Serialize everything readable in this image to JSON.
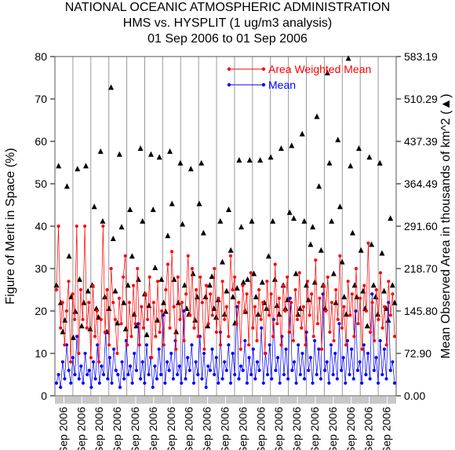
{
  "chart_data": {
    "type": "line",
    "title": "NATIONAL OCEANIC ATMOSPHERIC ADMINISTRATION",
    "subtitle_1": "HMS vs. HYSPLIT (1 ug/m3 analysis)",
    "subtitle_2": "01 Sep 2006 to 01 Sep 2006",
    "ylabel": "Figure of Merit in Space (%)",
    "y2label": "Mean Observed Area in thousands of km^2 (▲)",
    "ylim": [
      0,
      80
    ],
    "y_ticks": [
      "0",
      "10",
      "20",
      "30",
      "40",
      "50",
      "60",
      "70",
      "80"
    ],
    "y2lim": [
      0,
      583.19
    ],
    "y2_ticks": [
      "0.00",
      "72.90",
      "145.80",
      "218.70",
      "291.60",
      "364.49",
      "437.39",
      "510.29",
      "583.19"
    ],
    "x_tick_label": "Sep 2006",
    "x_tick_count": 19,
    "legend_position": "top-right",
    "colors": {
      "awm": "#ff0000",
      "mean": "#0000ff",
      "area": "#000000"
    },
    "series": [
      {
        "name": "Area Weighted Mean",
        "color": "#ff0000",
        "values": [
          25,
          40,
          16,
          22,
          12,
          20,
          27,
          8,
          24,
          18,
          40,
          10,
          25,
          18,
          40,
          16,
          22,
          9,
          26,
          14,
          20,
          8,
          18,
          40,
          15,
          25,
          12,
          30,
          22,
          18,
          10,
          23,
          17,
          28,
          33,
          12,
          22,
          14,
          26,
          17,
          30,
          12,
          21,
          16,
          24,
          18,
          28,
          9,
          22,
          14,
          27,
          15,
          20,
          12,
          25,
          31,
          16,
          34,
          21,
          11,
          28,
          18,
          22,
          13,
          24,
          33,
          19,
          30,
          16,
          25,
          14,
          28,
          22,
          11,
          26,
          17,
          24,
          19,
          30,
          15,
          23,
          12,
          27,
          18,
          21,
          14,
          33,
          25,
          28,
          17,
          22,
          11,
          26,
          20,
          24,
          12,
          29,
          16,
          21,
          13,
          25,
          18,
          22,
          10,
          27,
          19,
          24,
          14,
          31,
          17,
          23,
          12,
          26,
          20,
          28,
          15,
          22,
          13,
          25,
          18,
          29,
          16,
          21,
          12,
          27,
          19,
          24,
          14,
          32,
          17,
          23,
          11,
          26,
          20,
          28,
          15,
          22,
          13,
          25,
          18,
          33,
          16,
          21,
          12,
          27,
          19,
          24,
          14,
          30,
          17,
          23,
          11,
          26,
          20,
          36,
          15,
          22,
          13,
          25,
          18,
          29,
          16,
          21,
          12,
          27,
          19,
          24,
          14
        ]
      },
      {
        "name": "Mean",
        "color": "#0000ff",
        "values": [
          3,
          5,
          2,
          8,
          4,
          12,
          6,
          3,
          9,
          5,
          14,
          4,
          7,
          3,
          10,
          5,
          6,
          2,
          8,
          4,
          12,
          3,
          7,
          5,
          15,
          4,
          9,
          3,
          11,
          6,
          5,
          2,
          8,
          4,
          13,
          5,
          7,
          3,
          10,
          6,
          17,
          4,
          8,
          3,
          12,
          5,
          9,
          2,
          7,
          4,
          11,
          5,
          19,
          3,
          8,
          6,
          10,
          4,
          13,
          5,
          7,
          3,
          20,
          4,
          9,
          6,
          12,
          3,
          8,
          5,
          14,
          4,
          10,
          2,
          7,
          6,
          11,
          5,
          9,
          3,
          15,
          4,
          8,
          6,
          12,
          3,
          10,
          5,
          21,
          4,
          7,
          6,
          13,
          3,
          9,
          5,
          11,
          4,
          8,
          6,
          16,
          3,
          10,
          5,
          12,
          4,
          18,
          6,
          9,
          3,
          14,
          5,
          11,
          4,
          23,
          6,
          8,
          3,
          12,
          5,
          10,
          4,
          15,
          6,
          9,
          3,
          13,
          5,
          11,
          4,
          24,
          6,
          8,
          3,
          12,
          5,
          10,
          4,
          17,
          6,
          9,
          3,
          13,
          5,
          11,
          4,
          20,
          6,
          8,
          3,
          12,
          5,
          10,
          4,
          24,
          6,
          9,
          3,
          13,
          5,
          11,
          4,
          22,
          6,
          8,
          3
        ]
      },
      {
        "name": "Mean Observed Area",
        "axis": "y2",
        "marker": "triangle",
        "values": [
          190,
          395,
          160,
          110,
          130,
          360,
          240,
          170,
          100,
          145,
          390,
          200,
          120,
          160,
          395,
          180,
          115,
          190,
          325,
          150,
          135,
          420,
          300,
          170,
          110,
          150,
          530,
          270,
          180,
          125,
          415,
          290,
          160,
          115,
          190,
          320,
          240,
          140,
          120,
          200,
          425,
          300,
          175,
          105,
          155,
          415,
          320,
          220,
          130,
          410,
          200,
          160,
          145,
          275,
          420,
          330,
          200,
          110,
          160,
          400,
          295,
          190,
          150,
          140,
          390,
          210,
          130,
          170,
          330,
          400,
          280,
          170,
          120,
          190,
          205,
          150,
          135,
          165,
          300,
          230,
          140,
          180,
          320,
          250,
          170,
          125,
          185,
          405,
          290,
          195,
          145,
          200,
          405,
          300,
          210,
          170,
          140,
          405,
          195,
          160,
          150,
          240,
          410,
          300,
          200,
          155,
          140,
          425,
          190,
          150,
          165,
          315,
          430,
          305,
          210,
          140,
          150,
          450,
          300,
          190,
          165,
          260,
          290,
          195,
          480,
          360,
          250,
          190,
          150,
          555,
          400,
          300,
          210,
          160,
          440,
          325,
          230,
          170,
          140,
          580,
          395,
          280,
          190,
          170,
          425,
          250,
          180,
          150,
          120,
          410,
          260,
          190,
          170,
          140,
          400,
          245,
          180,
          150,
          130,
          305,
          190,
          160
        ]
      }
    ],
    "legend": {
      "awm_label": "Area Weighted Mean",
      "mean_label": "Mean"
    }
  }
}
